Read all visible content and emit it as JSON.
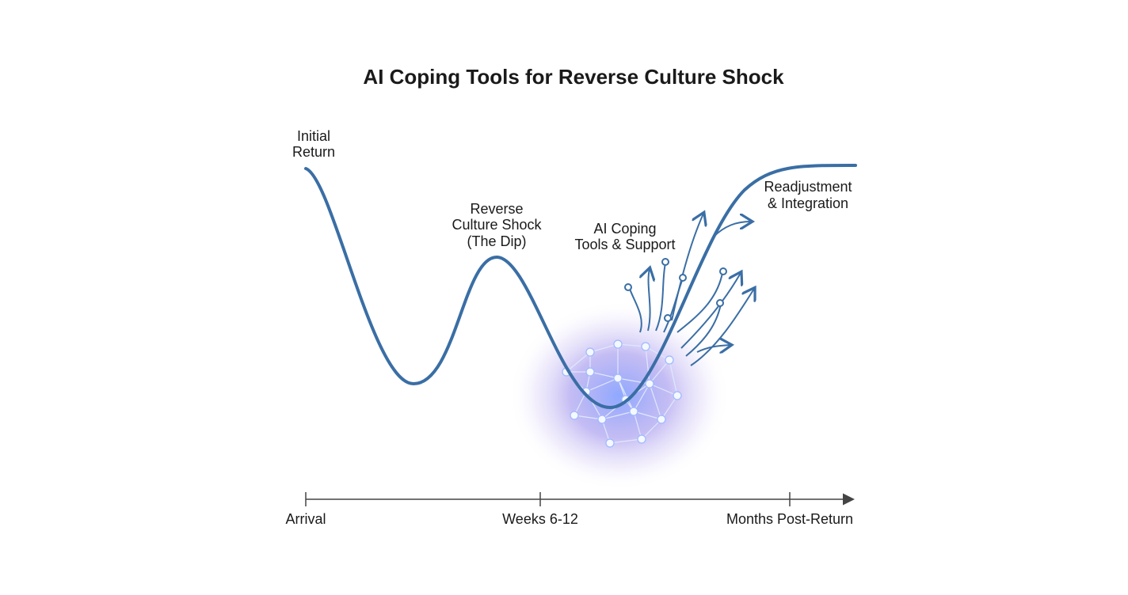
{
  "title": "AI Coping Tools for Reverse Culture Shock",
  "stages": [
    {
      "lines": [
        "Initial",
        "Return"
      ]
    },
    {
      "lines": [
        "Reverse",
        "Culture Shock",
        "(The Dip)"
      ]
    },
    {
      "lines": [
        "AI Coping",
        "Tools & Support"
      ]
    },
    {
      "lines": [
        "Readjustment",
        "& Integration"
      ]
    }
  ],
  "timeline": {
    "labels": [
      "Arrival",
      "Weeks 6-12",
      "Months Post-Return"
    ]
  }
}
